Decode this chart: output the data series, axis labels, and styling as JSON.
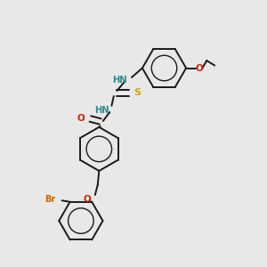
{
  "background_color": "#e8e8e8",
  "bond_color": "#1a1a1a",
  "atom_colors": {
    "N": "#2e8b8b",
    "O": "#cc2200",
    "S": "#ccaa00",
    "Br": "#cc6600"
  },
  "figsize": [
    3.0,
    3.0
  ],
  "dpi": 100
}
